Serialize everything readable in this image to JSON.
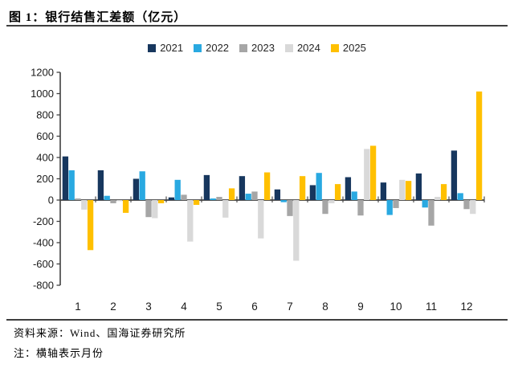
{
  "figure": {
    "title": "图 1：银行结售汇差额（亿元）",
    "source": "资料来源：Wind、国海证券研究所",
    "note": "注：横轴表示月份"
  },
  "chart_data": {
    "type": "bar",
    "title": "银行结售汇差额（亿元）",
    "categories": [
      "1",
      "2",
      "3",
      "4",
      "5",
      "6",
      "7",
      "8",
      "9",
      "10",
      "11",
      "12"
    ],
    "xlabel": "月份",
    "ylabel": "亿元",
    "ylim": [
      -800,
      1200
    ],
    "ytick_step": 200,
    "grid": false,
    "legend_position": "top-center",
    "axis_color": "#404040",
    "tick_label_color": "#1a1a1a",
    "series": [
      {
        "name": "2021",
        "color": "#17375E",
        "values": [
          410,
          280,
          200,
          25,
          235,
          225,
          100,
          140,
          215,
          165,
          250,
          465
        ]
      },
      {
        "name": "2022",
        "color": "#29A9E1",
        "values": [
          280,
          40,
          270,
          190,
          15,
          60,
          -20,
          255,
          80,
          -140,
          -70,
          65
        ]
      },
      {
        "name": "2023",
        "color": "#A6A6A6",
        "values": [
          15,
          -30,
          -160,
          50,
          30,
          80,
          -150,
          -130,
          -145,
          -75,
          -240,
          -85
        ]
      },
      {
        "name": "2024",
        "color": "#D9D9D9",
        "values": [
          -90,
          -10,
          -170,
          -390,
          -165,
          -360,
          -570,
          -30,
          480,
          190,
          30,
          -130
        ]
      },
      {
        "name": "2025",
        "color": "#FFC000",
        "values": [
          -470,
          -120,
          -30,
          -45,
          110,
          260,
          225,
          150,
          510,
          180,
          150,
          1020
        ]
      }
    ]
  }
}
